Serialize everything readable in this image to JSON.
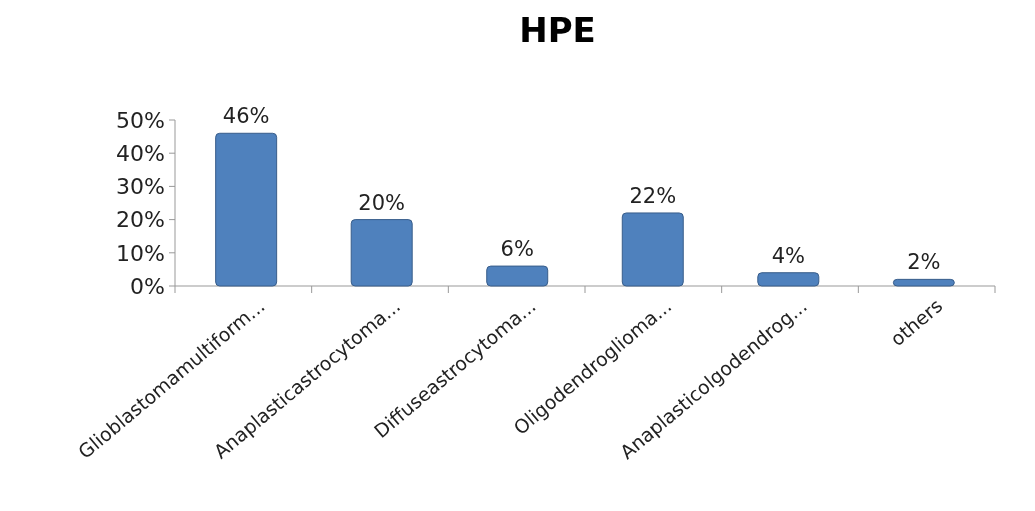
{
  "chart_data": {
    "type": "bar",
    "title": "HPE",
    "categories": [
      "Glioblastomamultiform...",
      "Anaplasticastrocytoma...",
      "Diffuseastrocytoma...",
      "Oligodendroglioma...",
      "Anaplasticolgodendrog...",
      "others"
    ],
    "values": [
      46,
      20,
      6,
      22,
      4,
      2
    ],
    "value_labels": [
      "46%",
      "20%",
      "6%",
      "22%",
      "4%",
      "2%"
    ],
    "color": "#4f81bd",
    "ylim": [
      0,
      50
    ],
    "yticks": [
      {
        "value": 0,
        "label": "0%"
      },
      {
        "value": 10,
        "label": "10%"
      },
      {
        "value": 20,
        "label": "20%"
      },
      {
        "value": 30,
        "label": "30%"
      },
      {
        "value": 40,
        "label": "40%"
      },
      {
        "value": 50,
        "label": "50%"
      }
    ]
  }
}
